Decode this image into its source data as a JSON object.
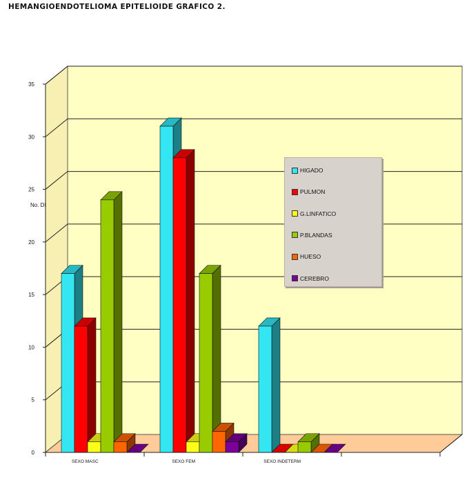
{
  "title": "HEMANGIOENDOTELIOMA EPITELIOIDE GRAFICO 2.",
  "chart_data": {
    "type": "bar",
    "title": "HEMANGIOENDOTELIOMA EPITELIOIDE GRAFICO 2.",
    "ylabel": "No. DE CASOS",
    "xlabel": "",
    "ylim": [
      0,
      35
    ],
    "yticks": [
      0,
      5,
      10,
      15,
      20,
      25,
      30,
      35
    ],
    "categories": [
      "SEXO MASC",
      "SEXO FEM",
      "SEXO INDETERM"
    ],
    "series": [
      {
        "name": "HIGADO",
        "color": "#33e6f2",
        "values": [
          17,
          31,
          12
        ]
      },
      {
        "name": "PULMON",
        "color": "#ff0000",
        "values": [
          12,
          28,
          0
        ]
      },
      {
        "name": "G.LINFATICO",
        "color": "#ffff1a",
        "values": [
          1,
          1,
          0
        ]
      },
      {
        "name": "P.BLANDAS",
        "color": "#99cc00",
        "values": [
          24,
          17,
          1
        ]
      },
      {
        "name": "HUESO",
        "color": "#ff6600",
        "values": [
          1,
          2,
          0
        ]
      },
      {
        "name": "CEREBRO",
        "color": "#7a0099",
        "values": [
          0,
          1,
          0
        ]
      }
    ],
    "grid": true,
    "legend": "right",
    "style": "3d"
  }
}
